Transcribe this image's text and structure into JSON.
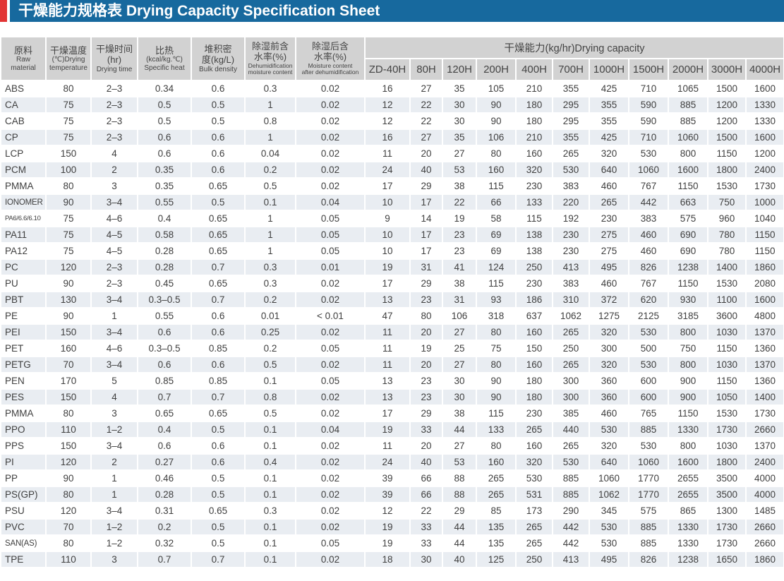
{
  "title": {
    "text": "干燥能力规格表 Drying Capacity Specification Sheet"
  },
  "colors": {
    "title_bar_blue": "#17699e",
    "accent_red": "#e23434",
    "header_gray": "#d2d2d2",
    "alt_row": "#e9edf2",
    "text": "#3f3f3f",
    "title_text": "#ffffff"
  },
  "table": {
    "headers": [
      {
        "zh": "原料",
        "en": "Raw\nmaterial"
      },
      {
        "zh": "干燥温度",
        "en": "(℃)Drying\ntemperature"
      },
      {
        "zh": "干燥时间\n(hr)",
        "en": "Drying time"
      },
      {
        "zh": "比热",
        "en": "(kcal/kg.℃)\nSpecific heat"
      },
      {
        "zh": "堆积密\n度(kg/L)",
        "en": "Bulk density"
      },
      {
        "zh": "除湿前含\n水率(%)",
        "en": "Dehumidification\nmoisture content"
      },
      {
        "zh": "除湿后含\n水率(%)",
        "en": "Moisture content\nafter dehumidification"
      }
    ],
    "capacity_group_label": "干燥能力(kg/hr)Drying capacity",
    "capacity_columns": [
      "ZD-40H",
      "80H",
      "120H",
      "200H",
      "400H",
      "700H",
      "1000H",
      "1500H",
      "2000H",
      "3000H",
      "4000H"
    ],
    "rows": [
      {
        "material": "ABS",
        "temp": "80",
        "time": "2–3",
        "specific_heat": "0.34",
        "bulk_density": "0.6",
        "moisture_before": "0.3",
        "moisture_after": "0.02",
        "capacity": [
          "16",
          "27",
          "35",
          "105",
          "210",
          "355",
          "425",
          "710",
          "1065",
          "1500",
          "1600"
        ]
      },
      {
        "material": "CA",
        "temp": "75",
        "time": "2–3",
        "specific_heat": "0.5",
        "bulk_density": "0.5",
        "moisture_before": "1",
        "moisture_after": "0.02",
        "capacity": [
          "12",
          "22",
          "30",
          "90",
          "180",
          "295",
          "355",
          "590",
          "885",
          "1200",
          "1330"
        ]
      },
      {
        "material": "CAB",
        "temp": "75",
        "time": "2–3",
        "specific_heat": "0.5",
        "bulk_density": "0.5",
        "moisture_before": "0.8",
        "moisture_after": "0.02",
        "capacity": [
          "12",
          "22",
          "30",
          "90",
          "180",
          "295",
          "355",
          "590",
          "885",
          "1200",
          "1330"
        ]
      },
      {
        "material": "CP",
        "temp": "75",
        "time": "2–3",
        "specific_heat": "0.6",
        "bulk_density": "0.6",
        "moisture_before": "1",
        "moisture_after": "0.02",
        "capacity": [
          "16",
          "27",
          "35",
          "106",
          "210",
          "355",
          "425",
          "710",
          "1060",
          "1500",
          "1600"
        ]
      },
      {
        "material": "LCP",
        "temp": "150",
        "time": "4",
        "specific_heat": "0.6",
        "bulk_density": "0.6",
        "moisture_before": "0.04",
        "moisture_after": "0.02",
        "capacity": [
          "11",
          "20",
          "27",
          "80",
          "160",
          "265",
          "320",
          "530",
          "800",
          "1150",
          "1200"
        ]
      },
      {
        "material": "PCM",
        "temp": "100",
        "time": "2",
        "specific_heat": "0.35",
        "bulk_density": "0.6",
        "moisture_before": "0.2",
        "moisture_after": "0.02",
        "capacity": [
          "24",
          "40",
          "53",
          "160",
          "320",
          "530",
          "640",
          "1060",
          "1600",
          "1800",
          "2400"
        ]
      },
      {
        "material": "PMMA",
        "temp": "80",
        "time": "3",
        "specific_heat": "0.35",
        "bulk_density": "0.65",
        "moisture_before": "0.5",
        "moisture_after": "0.02",
        "capacity": [
          "17",
          "29",
          "38",
          "115",
          "230",
          "383",
          "460",
          "767",
          "1150",
          "1530",
          "1730"
        ]
      },
      {
        "material": "IONOMER",
        "temp": "90",
        "time": "3–4",
        "specific_heat": "0.55",
        "bulk_density": "0.5",
        "moisture_before": "0.1",
        "moisture_after": "0.04",
        "capacity": [
          "10",
          "17",
          "22",
          "66",
          "133",
          "220",
          "265",
          "442",
          "663",
          "750",
          "1000"
        ]
      },
      {
        "material": "PA6/6.6/6.10",
        "temp": "75",
        "time": "4–6",
        "specific_heat": "0.4",
        "bulk_density": "0.65",
        "moisture_before": "1",
        "moisture_after": "0.05",
        "capacity": [
          "9",
          "14",
          "19",
          "58",
          "115",
          "192",
          "230",
          "383",
          "575",
          "960",
          "1040"
        ]
      },
      {
        "material": "PA11",
        "temp": "75",
        "time": "4–5",
        "specific_heat": "0.58",
        "bulk_density": "0.65",
        "moisture_before": "1",
        "moisture_after": "0.05",
        "capacity": [
          "10",
          "17",
          "23",
          "69",
          "138",
          "230",
          "275",
          "460",
          "690",
          "780",
          "1150"
        ]
      },
      {
        "material": "PA12",
        "temp": "75",
        "time": "4–5",
        "specific_heat": "0.28",
        "bulk_density": "0.65",
        "moisture_before": "1",
        "moisture_after": "0.05",
        "capacity": [
          "10",
          "17",
          "23",
          "69",
          "138",
          "230",
          "275",
          "460",
          "690",
          "780",
          "1150"
        ]
      },
      {
        "material": "PC",
        "temp": "120",
        "time": "2–3",
        "specific_heat": "0.28",
        "bulk_density": "0.7",
        "moisture_before": "0.3",
        "moisture_after": "0.01",
        "capacity": [
          "19",
          "31",
          "41",
          "124",
          "250",
          "413",
          "495",
          "826",
          "1238",
          "1400",
          "1860"
        ]
      },
      {
        "material": "PU",
        "temp": "90",
        "time": "2–3",
        "specific_heat": "0.45",
        "bulk_density": "0.65",
        "moisture_before": "0.3",
        "moisture_after": "0.02",
        "capacity": [
          "17",
          "29",
          "38",
          "115",
          "230",
          "383",
          "460",
          "767",
          "1150",
          "1530",
          "2080"
        ]
      },
      {
        "material": "PBT",
        "temp": "130",
        "time": "3–4",
        "specific_heat": "0.3–0.5",
        "bulk_density": "0.7",
        "moisture_before": "0.2",
        "moisture_after": "0.02",
        "capacity": [
          "13",
          "23",
          "31",
          "93",
          "186",
          "310",
          "372",
          "620",
          "930",
          "1100",
          "1600"
        ]
      },
      {
        "material": "PE",
        "temp": "90",
        "time": "1",
        "specific_heat": "0.55",
        "bulk_density": "0.6",
        "moisture_before": "0.01",
        "moisture_after": "< 0.01",
        "capacity": [
          "47",
          "80",
          "106",
          "318",
          "637",
          "1062",
          "1275",
          "2125",
          "3185",
          "3600",
          "4800"
        ]
      },
      {
        "material": "PEI",
        "temp": "150",
        "time": "3–4",
        "specific_heat": "0.6",
        "bulk_density": "0.6",
        "moisture_before": "0.25",
        "moisture_after": "0.02",
        "capacity": [
          "11",
          "20",
          "27",
          "80",
          "160",
          "265",
          "320",
          "530",
          "800",
          "1030",
          "1370"
        ]
      },
      {
        "material": "PET",
        "temp": "160",
        "time": "4–6",
        "specific_heat": "0.3–0.5",
        "bulk_density": "0.85",
        "moisture_before": "0.2",
        "moisture_after": "0.05",
        "capacity": [
          "11",
          "19",
          "25",
          "75",
          "150",
          "250",
          "300",
          "500",
          "750",
          "1150",
          "1360"
        ]
      },
      {
        "material": "PETG",
        "temp": "70",
        "time": "3–4",
        "specific_heat": "0.6",
        "bulk_density": "0.6",
        "moisture_before": "0.5",
        "moisture_after": "0.02",
        "capacity": [
          "11",
          "20",
          "27",
          "80",
          "160",
          "265",
          "320",
          "530",
          "800",
          "1030",
          "1370"
        ]
      },
      {
        "material": "PEN",
        "temp": "170",
        "time": "5",
        "specific_heat": "0.85",
        "bulk_density": "0.85",
        "moisture_before": "0.1",
        "moisture_after": "0.05",
        "capacity": [
          "13",
          "23",
          "30",
          "90",
          "180",
          "300",
          "360",
          "600",
          "900",
          "1150",
          "1360"
        ]
      },
      {
        "material": "PES",
        "temp": "150",
        "time": "4",
        "specific_heat": "0.7",
        "bulk_density": "0.7",
        "moisture_before": "0.8",
        "moisture_after": "0.02",
        "capacity": [
          "13",
          "23",
          "30",
          "90",
          "180",
          "300",
          "360",
          "600",
          "900",
          "1050",
          "1400"
        ]
      },
      {
        "material": "PMMA",
        "temp": "80",
        "time": "3",
        "specific_heat": "0.65",
        "bulk_density": "0.65",
        "moisture_before": "0.5",
        "moisture_after": "0.02",
        "capacity": [
          "17",
          "29",
          "38",
          "115",
          "230",
          "385",
          "460",
          "765",
          "1150",
          "1530",
          "1730"
        ]
      },
      {
        "material": "PPO",
        "temp": "110",
        "time": "1–2",
        "specific_heat": "0.4",
        "bulk_density": "0.5",
        "moisture_before": "0.1",
        "moisture_after": "0.04",
        "capacity": [
          "19",
          "33",
          "44",
          "133",
          "265",
          "440",
          "530",
          "885",
          "1330",
          "1730",
          "2660"
        ]
      },
      {
        "material": "PPS",
        "temp": "150",
        "time": "3–4",
        "specific_heat": "0.6",
        "bulk_density": "0.6",
        "moisture_before": "0.1",
        "moisture_after": "0.02",
        "capacity": [
          "11",
          "20",
          "27",
          "80",
          "160",
          "265",
          "320",
          "530",
          "800",
          "1030",
          "1370"
        ]
      },
      {
        "material": "PI",
        "temp": "120",
        "time": "2",
        "specific_heat": "0.27",
        "bulk_density": "0.6",
        "moisture_before": "0.4",
        "moisture_after": "0.02",
        "capacity": [
          "24",
          "40",
          "53",
          "160",
          "320",
          "530",
          "640",
          "1060",
          "1600",
          "1800",
          "2400"
        ]
      },
      {
        "material": "PP",
        "temp": "90",
        "time": "1",
        "specific_heat": "0.46",
        "bulk_density": "0.5",
        "moisture_before": "0.1",
        "moisture_after": "0.02",
        "capacity": [
          "39",
          "66",
          "88",
          "265",
          "530",
          "885",
          "1060",
          "1770",
          "2655",
          "3500",
          "4000"
        ]
      },
      {
        "material": "PS(GP)",
        "temp": "80",
        "time": "1",
        "specific_heat": "0.28",
        "bulk_density": "0.5",
        "moisture_before": "0.1",
        "moisture_after": "0.02",
        "capacity": [
          "39",
          "66",
          "88",
          "265",
          "531",
          "885",
          "1062",
          "1770",
          "2655",
          "3500",
          "4000"
        ]
      },
      {
        "material": "PSU",
        "temp": "120",
        "time": "3–4",
        "specific_heat": "0.31",
        "bulk_density": "0.65",
        "moisture_before": "0.3",
        "moisture_after": "0.02",
        "capacity": [
          "12",
          "22",
          "29",
          "85",
          "173",
          "290",
          "345",
          "575",
          "865",
          "1300",
          "1485"
        ]
      },
      {
        "material": "PVC",
        "temp": "70",
        "time": "1–2",
        "specific_heat": "0.2",
        "bulk_density": "0.5",
        "moisture_before": "0.1",
        "moisture_after": "0.02",
        "capacity": [
          "19",
          "33",
          "44",
          "135",
          "265",
          "442",
          "530",
          "885",
          "1330",
          "1730",
          "2660"
        ]
      },
      {
        "material": "SAN(AS)",
        "temp": "80",
        "time": "1–2",
        "specific_heat": "0.32",
        "bulk_density": "0.5",
        "moisture_before": "0.1",
        "moisture_after": "0.05",
        "capacity": [
          "19",
          "33",
          "44",
          "135",
          "265",
          "442",
          "530",
          "885",
          "1330",
          "1730",
          "2660"
        ]
      },
      {
        "material": "TPE",
        "temp": "110",
        "time": "3",
        "specific_heat": "0.7",
        "bulk_density": "0.7",
        "moisture_before": "0.1",
        "moisture_after": "0.02",
        "capacity": [
          "18",
          "30",
          "40",
          "125",
          "250",
          "413",
          "495",
          "826",
          "1238",
          "1650",
          "1860"
        ]
      }
    ]
  }
}
